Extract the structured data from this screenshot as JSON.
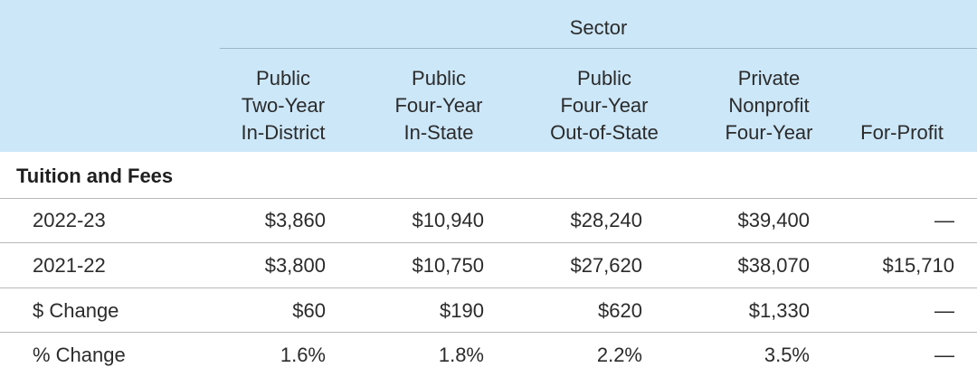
{
  "sector_label": "Sector",
  "columns": [
    "Public\nTwo-Year\nIn-District",
    "Public\nFour-Year\nIn-State",
    "Public\nFour-Year\nOut-of-State",
    "Private\nNonprofit\nFour-Year",
    "For-Profit"
  ],
  "section_title": "Tuition and Fees",
  "rows": [
    {
      "label": "2022-23",
      "values": [
        "$3,860",
        "$10,940",
        "$28,240",
        "$39,400",
        "—"
      ]
    },
    {
      "label": "2021-22",
      "values": [
        "$3,800",
        "$10,750",
        "$27,620",
        "$38,070",
        "$15,710"
      ]
    },
    {
      "label": "$ Change",
      "values": [
        "$60",
        "$190",
        "$620",
        "$1,330",
        "—"
      ]
    },
    {
      "label": "% Change",
      "values": [
        "1.6%",
        "1.8%",
        "2.2%",
        "3.5%",
        "—"
      ]
    }
  ],
  "colors": {
    "header_bg": "#cce7f8",
    "text": "#2b2b2b",
    "rule": "#b8b8b8"
  }
}
